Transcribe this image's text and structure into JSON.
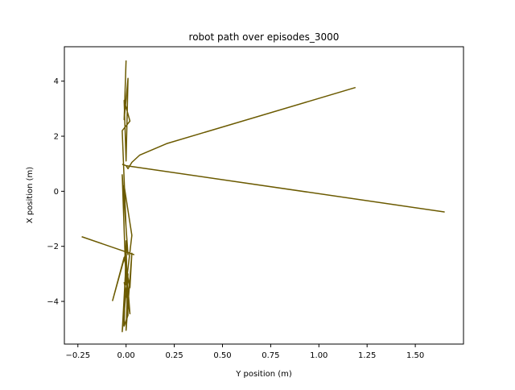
{
  "chart_data": {
    "type": "line",
    "title": "robot path over episodes_3000",
    "xlabel": "Y position (m)",
    "ylabel": "X position (m)",
    "xlim": [
      -0.32,
      1.75
    ],
    "ylim": [
      -5.55,
      5.25
    ],
    "xticks": [
      -0.25,
      0.0,
      0.25,
      0.5,
      0.75,
      1.0,
      1.25,
      1.5
    ],
    "xtick_labels": [
      "−0.25",
      "0.00",
      "0.25",
      "0.50",
      "0.75",
      "1.00",
      "1.25",
      "1.50"
    ],
    "yticks": [
      -4,
      -2,
      0,
      2,
      4
    ],
    "ytick_labels": [
      "−4",
      "−2",
      "0",
      "2",
      "4"
    ],
    "grid": false,
    "legend": "none",
    "color": "#6b5a00",
    "series": [
      {
        "x": [
          1.19,
          0.21,
          0.07,
          0.03,
          0.01,
          0.0,
          1.65,
          0.0,
          -0.02
        ],
        "y": [
          3.77,
          1.73,
          1.31,
          1.05,
          0.82,
          0.93,
          -0.75,
          0.93,
          0.98
        ]
      },
      {
        "x": [
          0.0,
          -0.01,
          0.01,
          0.0,
          -0.01,
          0.02,
          -0.02,
          0.0,
          -0.01,
          0.03,
          0.0,
          -0.02,
          0.01,
          0.0,
          -0.01,
          0.01,
          0.0
        ],
        "y": [
          4.75,
          2.6,
          4.1,
          1.1,
          3.3,
          2.55,
          2.2,
          -1.35,
          0.2,
          -1.6,
          -3.4,
          0.6,
          -2.3,
          -1.8,
          -4.9,
          -4.5,
          -2.0
        ]
      },
      {
        "x": [
          -0.23,
          0.04,
          0.0,
          -0.07,
          -0.01,
          0.02,
          0.03,
          0.0,
          0.01,
          -0.02,
          0.0,
          0.02,
          -0.01
        ],
        "y": [
          -1.65,
          -2.3,
          -2.2,
          -3.97,
          -2.4,
          -3.5,
          -2.25,
          -5.05,
          -3.0,
          -5.1,
          -2.6,
          -4.45,
          -3.3
        ]
      }
    ]
  }
}
